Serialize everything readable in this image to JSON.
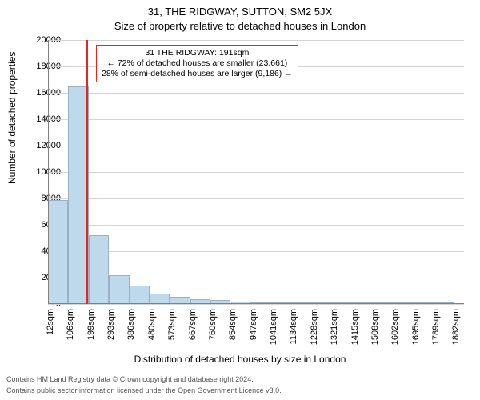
{
  "title_line1": "31, THE RIDGWAY, SUTTON, SM2 5JX",
  "title_line2": "Size of property relative to detached houses in London",
  "title_fontsize_pt": 12,
  "y_axis_label": "Number of detached properties",
  "x_axis_label": "Distribution of detached houses by size in London",
  "axis_label_fontsize_pt": 12,
  "tick_label_fontsize_pt": 11,
  "footer_line1": "Contains HM Land Registry data © Crown copyright and database right 2024.",
  "footer_line2": "Contains public sector information licensed under the Open Government Licence v3.0.",
  "footer_fontsize_pt": 9,
  "footer_color": "#555555",
  "background_color": "#ffffff",
  "plot_border_color": "#808080",
  "grid_color": "#d5d5d5",
  "bar_fill_color": "#bed8ec",
  "bar_border_color": "rgba(0,0,0,0.18)",
  "marker_line_color": "#e52620",
  "annotation_border_color": "#e52620",
  "text_color": "#000000",
  "chart_type": "histogram",
  "xlim_min_sqm": 12,
  "xlim_max_sqm": 1929,
  "bin_width_sqm": 93.6,
  "ylim": [
    0,
    20000
  ],
  "ytick_step": 2000,
  "y_ticks": [
    0,
    2000,
    4000,
    6000,
    8000,
    10000,
    12000,
    14000,
    16000,
    18000,
    20000
  ],
  "x_ticks_sqm": [
    12,
    106,
    199,
    293,
    386,
    480,
    573,
    667,
    760,
    854,
    947,
    1041,
    1134,
    1228,
    1321,
    1415,
    1508,
    1602,
    1695,
    1789,
    1882
  ],
  "x_tick_labels": [
    "12sqm",
    "106sqm",
    "199sqm",
    "293sqm",
    "386sqm",
    "480sqm",
    "573sqm",
    "667sqm",
    "760sqm",
    "854sqm",
    "947sqm",
    "1041sqm",
    "1134sqm",
    "1228sqm",
    "1321sqm",
    "1415sqm",
    "1508sqm",
    "1602sqm",
    "1695sqm",
    "1789sqm",
    "1882sqm"
  ],
  "bin_counts": [
    7900,
    16500,
    5200,
    2200,
    1400,
    800,
    550,
    380,
    280,
    180,
    130,
    90,
    65,
    50,
    38,
    28,
    20,
    15,
    11,
    8
  ],
  "subject_value_sqm": 191,
  "annotation_lines": {
    "line1": "31 THE RIDGWAY: 191sqm",
    "line2": "← 72% of detached houses are smaller (23,661)",
    "line3": "28% of semi-detached houses are larger (9,186) →"
  },
  "annotation_fontsize_pt": 10
}
